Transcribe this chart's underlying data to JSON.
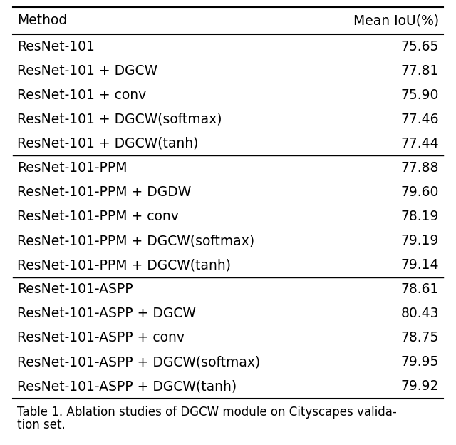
{
  "col_headers": [
    "Method",
    "Mean IoU(%)"
  ],
  "groups": [
    {
      "rows": [
        [
          "ResNet-101",
          "75.65"
        ],
        [
          "ResNet-101 + DGCW",
          "77.81"
        ],
        [
          "ResNet-101 + conv",
          "75.90"
        ],
        [
          "ResNet-101 + DGCW(softmax)",
          "77.46"
        ],
        [
          "ResNet-101 + DGCW(tanh)",
          "77.44"
        ]
      ]
    },
    {
      "rows": [
        [
          "ResNet-101-PPM",
          "77.88"
        ],
        [
          "ResNet-101-PPM + DGDW",
          "79.60"
        ],
        [
          "ResNet-101-PPM + conv",
          "78.19"
        ],
        [
          "ResNet-101-PPM + DGCW(softmax)",
          "79.19"
        ],
        [
          "ResNet-101-PPM + DGCW(tanh)",
          "79.14"
        ]
      ]
    },
    {
      "rows": [
        [
          "ResNet-101-ASPP",
          "78.61"
        ],
        [
          "ResNet-101-ASPP + DGCW",
          "80.43"
        ],
        [
          "ResNet-101-ASPP + conv",
          "78.75"
        ],
        [
          "ResNet-101-ASPP + DGCW(softmax)",
          "79.95"
        ],
        [
          "ResNet-101-ASPP + DGCW(tanh)",
          "79.92"
        ]
      ]
    }
  ],
  "caption_line1": "Table 1. Ablation studies of DGCW module on Cityscapes valida-",
  "caption_line2": "tion set.",
  "bg_color": "#ffffff",
  "text_color": "#000000",
  "line_color": "#000000",
  "header_fontsize": 13.5,
  "body_fontsize": 13.5,
  "caption_fontsize": 12.0,
  "fig_width": 6.4,
  "fig_height": 6.24,
  "dpi": 100
}
